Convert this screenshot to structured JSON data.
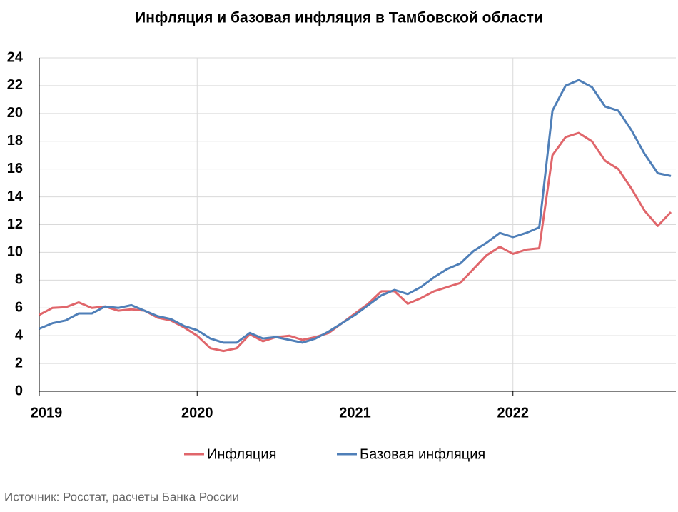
{
  "chart_data": {
    "type": "line",
    "title": "Инфляция и базовая инфляция в Тамбовской области",
    "source": "Источник: Росстат, расчеты Банка России",
    "categories": [
      "2019",
      null,
      null,
      null,
      null,
      null,
      null,
      null,
      null,
      null,
      null,
      null,
      "2020",
      null,
      null,
      null,
      null,
      null,
      null,
      null,
      null,
      null,
      null,
      null,
      "2021",
      null,
      null,
      null,
      null,
      null,
      null,
      null,
      null,
      null,
      null,
      null,
      "2022",
      null,
      null,
      null,
      null,
      null,
      null,
      null,
      null,
      null,
      null,
      null,
      null
    ],
    "series": [
      {
        "name": "Инфляция",
        "color": "#e0666b",
        "values": [
          5.5,
          6.0,
          6.05,
          6.4,
          6.0,
          6.1,
          5.8,
          5.9,
          5.8,
          5.3,
          5.1,
          4.6,
          4.0,
          3.1,
          2.9,
          3.1,
          4.1,
          3.6,
          3.9,
          4.0,
          3.7,
          3.9,
          4.2,
          4.9,
          5.6,
          6.3,
          7.2,
          7.2,
          6.3,
          6.7,
          7.2,
          7.5,
          7.8,
          8.8,
          9.8,
          10.4,
          9.9,
          10.2,
          10.3,
          17.0,
          18.3,
          18.6,
          18.0,
          16.6,
          16.0,
          14.6,
          13.0,
          11.9,
          12.9
        ]
      },
      {
        "name": "Базовая инфляция",
        "color": "#4f7fb8",
        "values": [
          4.5,
          4.9,
          5.1,
          5.6,
          5.6,
          6.1,
          6.0,
          6.2,
          5.8,
          5.4,
          5.2,
          4.7,
          4.4,
          3.8,
          3.5,
          3.5,
          4.2,
          3.8,
          3.9,
          3.7,
          3.5,
          3.8,
          4.3,
          4.9,
          5.5,
          6.2,
          6.9,
          7.3,
          7.0,
          7.5,
          8.2,
          8.8,
          9.2,
          10.1,
          10.7,
          11.4,
          11.1,
          11.4,
          11.8,
          20.2,
          22.0,
          22.4,
          21.9,
          20.5,
          20.2,
          18.8,
          17.1,
          15.7,
          15.5
        ]
      }
    ],
    "ylim": [
      0,
      24
    ],
    "yticks": [
      0,
      2,
      4,
      6,
      8,
      10,
      12,
      14,
      16,
      18,
      20,
      22,
      24
    ],
    "grid": true,
    "legend": "bottom"
  }
}
